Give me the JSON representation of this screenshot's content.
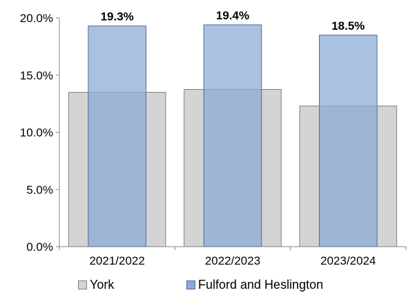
{
  "chart_data": {
    "type": "bar",
    "categories": [
      "2021/2022",
      "2022/2023",
      "2023/2024"
    ],
    "series": [
      {
        "name": "York",
        "values": [
          13.5,
          13.75,
          12.3
        ],
        "color": "#d4d4d4",
        "stroke": "#7f7f7f"
      },
      {
        "name": "Fulford and Heslington",
        "values": [
          19.3,
          19.4,
          18.5
        ],
        "color": "#8aa9d6",
        "stroke": "#4f6b95",
        "data_labels": [
          "19.3%",
          "19.4%",
          "18.5%"
        ]
      }
    ],
    "y_ticks": [
      "0.0%",
      "5.0%",
      "10.0%",
      "15.0%",
      "20.0%"
    ],
    "y_tick_values": [
      0,
      5,
      10,
      15,
      20
    ],
    "ylim": [
      0,
      20
    ],
    "grid": false,
    "legend_position": "bottom"
  }
}
